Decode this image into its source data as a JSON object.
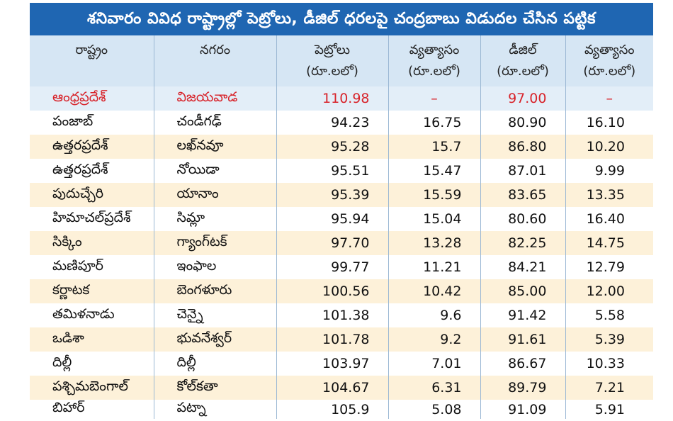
{
  "title": "శనివారం వివిధ రాష్ట్రాల్లో పెట్రోలు, డీజిల్ ధరలపై చంద్రబాబు విడుదల చేసిన పట్టిక",
  "colors": {
    "title_bg": "#1f66b2",
    "header_bg": "#d6e6f4",
    "row_alt": "#fdf1d9",
    "highlight_text": "#d8232a"
  },
  "headers": {
    "state": "రాష్ట్రం",
    "city": "నగరం",
    "petrol": "పెట్రోలు",
    "petrol_unit": "(రూ.లలో)",
    "petrol_diff": "వ్యత్యాసం",
    "petrol_diff_unit": "(రూ.లలో)",
    "diesel": "డీజిల్",
    "diesel_unit": "(రూ.లలో)",
    "diesel_diff": "వ్యత్యాసం",
    "diesel_diff_unit": "(రూ.లలో)"
  },
  "rows": [
    {
      "state": "ఆంధ్రప్రదేశ్",
      "city": "విజయవాడ",
      "petrol": "110.98",
      "petrol_diff": "–",
      "diesel": "97.00",
      "diesel_diff": "–"
    },
    {
      "state": "పంజాబ్",
      "city": "చండీగఢ్",
      "petrol": "94.23",
      "petrol_diff": "16.75",
      "diesel": "80.90",
      "diesel_diff": "16.10"
    },
    {
      "state": "ఉత్తరప్రదేశ్",
      "city": "లఖ్‌నవూ",
      "petrol": "95.28",
      "petrol_diff": "15.7",
      "diesel": "86.80",
      "diesel_diff": "10.20"
    },
    {
      "state": "ఉత్తరప్రదేశ్",
      "city": "నోయిడా",
      "petrol": "95.51",
      "petrol_diff": "15.47",
      "diesel": "87.01",
      "diesel_diff": "9.99"
    },
    {
      "state": "పుదుచ్చేరి",
      "city": "యానాం",
      "petrol": "95.39",
      "petrol_diff": "15.59",
      "diesel": "83.65",
      "diesel_diff": "13.35"
    },
    {
      "state": "హిమాచల్‌ప్రదేశ్",
      "city": "సిమ్లా",
      "petrol": "95.94",
      "petrol_diff": "15.04",
      "diesel": "80.60",
      "diesel_diff": "16.40"
    },
    {
      "state": "సిక్కిం",
      "city": "గ్యాంగ్‌టక్",
      "petrol": "97.70",
      "petrol_diff": "13.28",
      "diesel": "82.25",
      "diesel_diff": "14.75"
    },
    {
      "state": "మణిపూర్",
      "city": "ఇంఫాల",
      "petrol": "99.77",
      "petrol_diff": "11.21",
      "diesel": "84.21",
      "diesel_diff": "12.79"
    },
    {
      "state": "కర్ణాటక",
      "city": "బెంగళూరు",
      "petrol": "100.56",
      "petrol_diff": "10.42",
      "diesel": "85.00",
      "diesel_diff": "12.00"
    },
    {
      "state": "తమిళనాడు",
      "city": "చెన్నై",
      "petrol": "101.38",
      "petrol_diff": "9.6",
      "diesel": "91.42",
      "diesel_diff": "5.58"
    },
    {
      "state": "ఒడిశా",
      "city": "భువనేశ్వర్",
      "petrol": "101.78",
      "petrol_diff": "9.2",
      "diesel": "91.61",
      "diesel_diff": "5.39"
    },
    {
      "state": "దిల్లీ",
      "city": "దిల్లీ",
      "petrol": "103.97",
      "petrol_diff": "7.01",
      "diesel": "86.67",
      "diesel_diff": "10.33"
    },
    {
      "state": "పశ్చిమబెంగాల్",
      "city": "కోల్‌కతా",
      "petrol": "104.67",
      "petrol_diff": "6.31",
      "diesel": "89.79",
      "diesel_diff": "7.21"
    },
    {
      "state": "బిహార్",
      "city": "పట్నా",
      "petrol": "105.9",
      "petrol_diff": "5.08",
      "diesel": "91.09",
      "diesel_diff": "5.91"
    }
  ]
}
